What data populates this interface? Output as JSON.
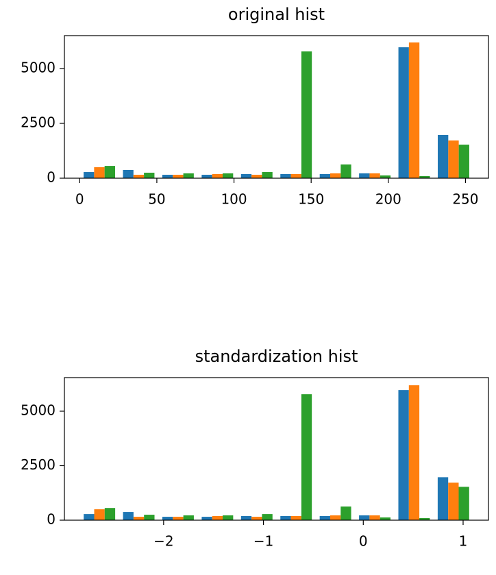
{
  "chart_data": [
    {
      "type": "histogram",
      "title": "original hist",
      "bins": [
        0,
        25.5,
        51,
        76.5,
        102,
        127.5,
        153,
        178.5,
        204,
        229.5,
        255
      ],
      "series": [
        {
          "color": "#1f77b4",
          "values": [
            280,
            375,
            156,
            156,
            190,
            190,
            190,
            220,
            5970,
            1970
          ]
        },
        {
          "color": "#ff7f0e",
          "values": [
            500,
            156,
            156,
            190,
            156,
            190,
            220,
            220,
            6190,
            1720
          ]
        },
        {
          "color": "#2ca02c",
          "values": [
            560,
            250,
            220,
            220,
            280,
            5780,
            625,
            125,
            94,
            1530
          ]
        }
      ],
      "xlim": [
        -9.9,
        264.9
      ],
      "xticks": [
        0,
        50,
        100,
        150,
        200,
        250
      ],
      "ylim": [
        0,
        6500
      ],
      "yticks": [
        0,
        2500,
        5000
      ]
    },
    {
      "type": "histogram",
      "title": "standardization hist",
      "bins": [
        -2.84,
        -2.446,
        -2.052,
        -1.658,
        -1.264,
        -0.87,
        -0.476,
        -0.082,
        0.312,
        0.706,
        1.1
      ],
      "series": [
        {
          "color": "#1f77b4",
          "values": [
            280,
            375,
            156,
            156,
            190,
            190,
            190,
            220,
            5970,
            1970
          ]
        },
        {
          "color": "#ff7f0e",
          "values": [
            500,
            156,
            156,
            190,
            156,
            190,
            220,
            220,
            6190,
            1720
          ]
        },
        {
          "color": "#2ca02c",
          "values": [
            560,
            250,
            220,
            220,
            280,
            5780,
            625,
            125,
            94,
            1530
          ]
        }
      ],
      "xlim": [
        -2.994,
        1.254
      ],
      "xticks": [
        {
          "value": -2,
          "label": "−2"
        },
        {
          "value": -1,
          "label": "−1"
        },
        0,
        1
      ],
      "ylim": [
        0,
        6540
      ],
      "yticks": [
        0,
        2500,
        5000
      ]
    }
  ]
}
